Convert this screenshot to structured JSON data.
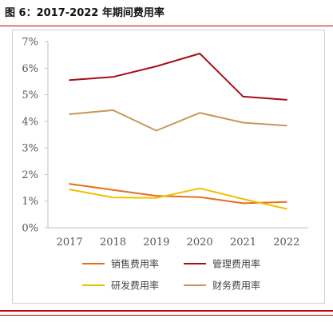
{
  "header": {
    "title": "图 6：2017-2022 年期间费用率"
  },
  "chart_data": {
    "type": "line",
    "title": "图 6：2017-2022 年期间费用率",
    "x": [
      "2017",
      "2018",
      "2019",
      "2020",
      "2021",
      "2022"
    ],
    "ylim": [
      0,
      7
    ],
    "yticks": [
      "0%",
      "1%",
      "2%",
      "3%",
      "4%",
      "5%",
      "6%",
      "7%"
    ],
    "grid": false,
    "legend_position": "bottom",
    "series": [
      {
        "name": "销售费用率",
        "color": "#e36f1e",
        "values": [
          1.65,
          1.42,
          1.2,
          1.15,
          0.92,
          0.97
        ]
      },
      {
        "name": "管理费用率",
        "color": "#a50f15",
        "values": [
          5.55,
          5.67,
          6.07,
          6.55,
          4.93,
          4.81
        ]
      },
      {
        "name": "研发费用率",
        "color": "#f0c000",
        "values": [
          1.44,
          1.14,
          1.12,
          1.48,
          1.08,
          0.71
        ]
      },
      {
        "name": "财务费用率",
        "color": "#c8975a",
        "values": [
          4.27,
          4.42,
          3.65,
          4.32,
          3.95,
          3.84
        ]
      }
    ]
  }
}
